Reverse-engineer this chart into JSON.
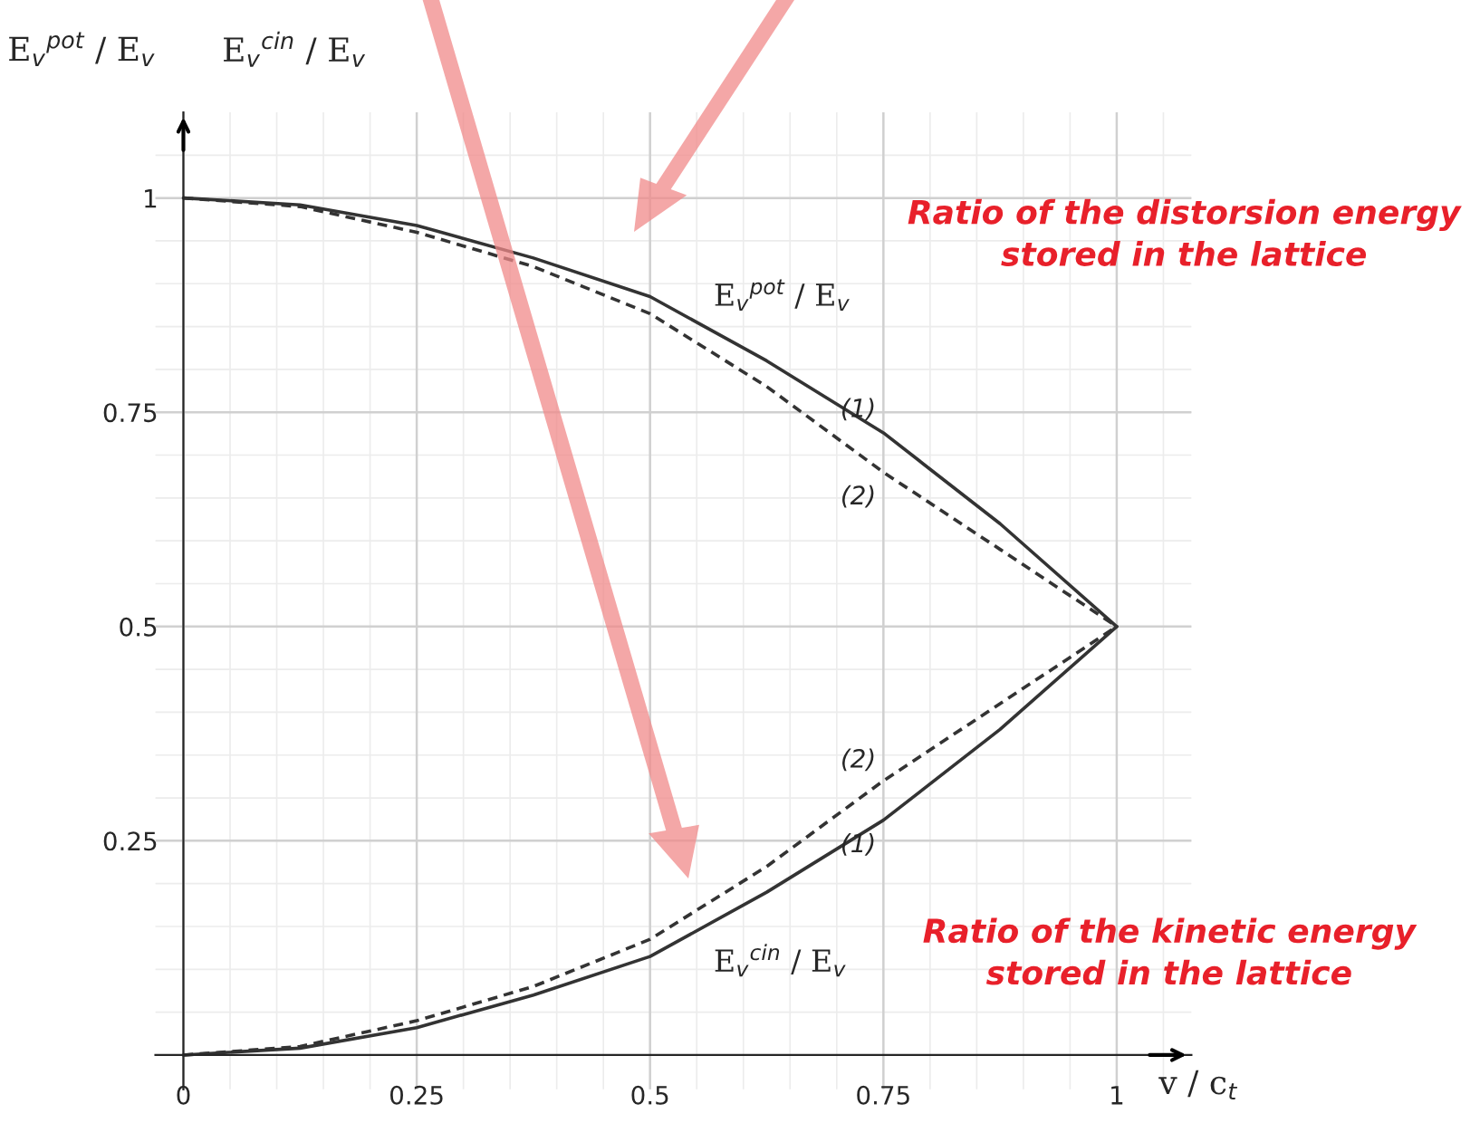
{
  "chart_data": {
    "type": "line",
    "ylabel": "E$_{v}$$^{pot}$ / E$_{v}$",
    "xlabel": "v / c$_{t}$",
    "x": [
      0,
      0.125,
      0.25,
      0.375,
      0.5,
      0.625,
      0.75,
      0.875,
      1
    ],
    "series": [
      {
        "name": "(1)",
        "color": "#333333",
        "line_style": "solid",
        "values": [
          1,
          0.992,
          0.968,
          0.93,
          0.885,
          0.81,
          0.726,
          0.62,
          0.5
        ]
      },
      {
        "name": "(2)",
        "color": "#333333",
        "line_style": "dashed",
        "values": [
          1,
          0.99,
          0.96,
          0.92,
          0.865,
          0.78,
          0.68,
          0.59,
          0.5
        ]
      },
      {
        "name": "(2)",
        "color": "#333333",
        "line_style": "dashed",
        "values": [
          0,
          0.01,
          0.04,
          0.08,
          0.135,
          0.22,
          0.32,
          0.41,
          0.5
        ]
      },
      {
        "name": "(1)",
        "color": "#333333",
        "line_style": "solid",
        "values": [
          0,
          0.008,
          0.032,
          0.07,
          0.115,
          0.19,
          0.274,
          0.38,
          0.5
        ]
      }
    ],
    "annotations": [
      "E$_{v}$$^{cin}$ / E$_{v}$",
      {
        "text": "E$_{v}$$^{pot}$ / E$_{v}$",
        "x": 0.56,
        "y": 0.855
      },
      {
        "text": "E$_{v}$$^{cin}$ / E$_{v}$",
        "x": 0.56,
        "y": 0.14
      },
      "Ratio of the distorsion energy\nstored in the lattice",
      "Ratio of the kinetic energy\nstored in the lattice"
    ],
    "xlim": [
      -0.03,
      1.08
    ],
    "ylim": [
      -0.04,
      1.1
    ],
    "xticks": [
      0,
      0.25,
      0.5,
      0.75,
      1
    ],
    "yticks": [
      0.25,
      0.5,
      0.75,
      1
    ],
    "grid": true,
    "marker": "none",
    "legend": false
  }
}
